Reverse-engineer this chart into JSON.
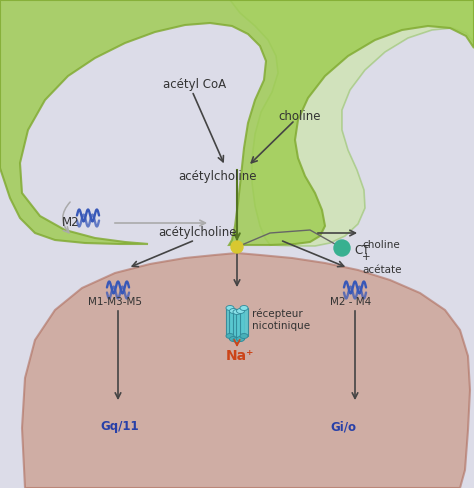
{
  "background_color": "#dcdce8",
  "pre_color": "#9ecc50",
  "pre_edge": "#80aa30",
  "pre_right_color": "#c8e898",
  "pre_right_edge": "#90c060",
  "post_color": "#c8907a",
  "post_edge": "#b07060",
  "labels": {
    "acetyl_coa": "acétyl CoA",
    "choline_top": "choline",
    "acetylcholine_pre": "acétylcholine",
    "m2_label": "M2",
    "ct_label": "CT",
    "choline_acetate": "choline\n+\nacétate",
    "acetylcholine_syn": "acétylcholine",
    "m1m3m5": "M1-M3-M5",
    "receptor": "récepteur\nnicotinique",
    "na_plus": "Na⁺",
    "m2m4": "M2 - M4",
    "gq11": "Gq/11",
    "gio": "Gi/o"
  },
  "colors": {
    "dark_arrow": "#444444",
    "gray_arrow": "#aaaaaa",
    "green_dot": "#38b090",
    "yellow_dot": "#d8c830",
    "na_color": "#cc4418",
    "blue_receptor": "#3858b8",
    "cyan_channel": "#58c8d0",
    "text_dark": "#333333",
    "text_blue": "#2840a8"
  }
}
